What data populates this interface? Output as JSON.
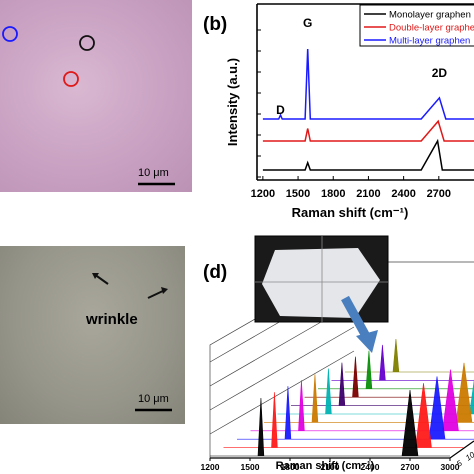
{
  "panel_a": {
    "scale_bar_label": "10 μm",
    "circles": [
      {
        "color": "#1a1aff",
        "layer": "multi"
      },
      {
        "color": "#111111",
        "layer": "mono"
      },
      {
        "color": "#e01818",
        "layer": "double"
      }
    ]
  },
  "panel_c": {
    "annotation": "wrinkle",
    "scale_bar_label": "10 μm"
  },
  "panel_b_label": "(b)",
  "panel_d_label": "(d)",
  "chart_data": [
    {
      "type": "line",
      "xlabel": "Raman shift (cm⁻¹)",
      "ylabel": "Intensity (a.u.)",
      "xlim": [
        1150,
        3000
      ],
      "xticks": [
        "1200",
        "1500",
        "1800",
        "2100",
        "2400",
        "2700"
      ],
      "peak_labels": [
        "D",
        "G",
        "2D"
      ],
      "legend": [
        "Monolayer graphen",
        "Double-layer graphe",
        "Multi-layer graphen"
      ],
      "legend_position": "top-right",
      "series": [
        {
          "name": "Monolayer graphen",
          "color": "#000000",
          "offset": 0,
          "points": [
            [
              1200,
              0
            ],
            [
              1350,
              0
            ],
            [
              1560,
              0
            ],
            [
              1582,
              0.55
            ],
            [
              1604,
              0
            ],
            [
              2550,
              0
            ],
            [
              2690,
              2.2
            ],
            [
              2730,
              0
            ],
            [
              3000,
              0
            ]
          ]
        },
        {
          "name": "Double-layer graphe",
          "color": "#e01818",
          "offset": 1,
          "points": [
            [
              1200,
              0
            ],
            [
              1350,
              0
            ],
            [
              1560,
              0
            ],
            [
              1582,
              0.95
            ],
            [
              1604,
              0
            ],
            [
              2550,
              0
            ],
            [
              2695,
              1.5
            ],
            [
              2745,
              0
            ],
            [
              3000,
              0
            ]
          ]
        },
        {
          "name": "Multi-layer graphen",
          "color": "#1a1aff",
          "offset": 2,
          "points": [
            [
              1200,
              0
            ],
            [
              1335,
              0
            ],
            [
              1350,
              0.3
            ],
            [
              1365,
              0
            ],
            [
              1560,
              0
            ],
            [
              1582,
              5.3
            ],
            [
              1604,
              0
            ],
            [
              2550,
              0
            ],
            [
              2705,
              1.6
            ],
            [
              2760,
              0
            ],
            [
              3000,
              0
            ]
          ]
        }
      ]
    },
    {
      "type": "line",
      "xlabel": "Raman shift (cm⁻¹)",
      "xlim": [
        1200,
        3000
      ],
      "xticks": [
        "1200",
        "1500",
        "1800",
        "2100",
        "2400",
        "2700",
        "3000"
      ],
      "depth_ticks": [
        "5",
        "10"
      ],
      "num_spectra": 11,
      "series_colors": [
        "#000000",
        "#ff1a1a",
        "#1a1aff",
        "#e000e0",
        "#cc7a00",
        "#00b3b3",
        "#3d006b",
        "#7a0000",
        "#0b8f0b",
        "#6600cc",
        "#808000"
      ],
      "peaks": {
        "G": 1582,
        "2D": 2700
      }
    }
  ]
}
